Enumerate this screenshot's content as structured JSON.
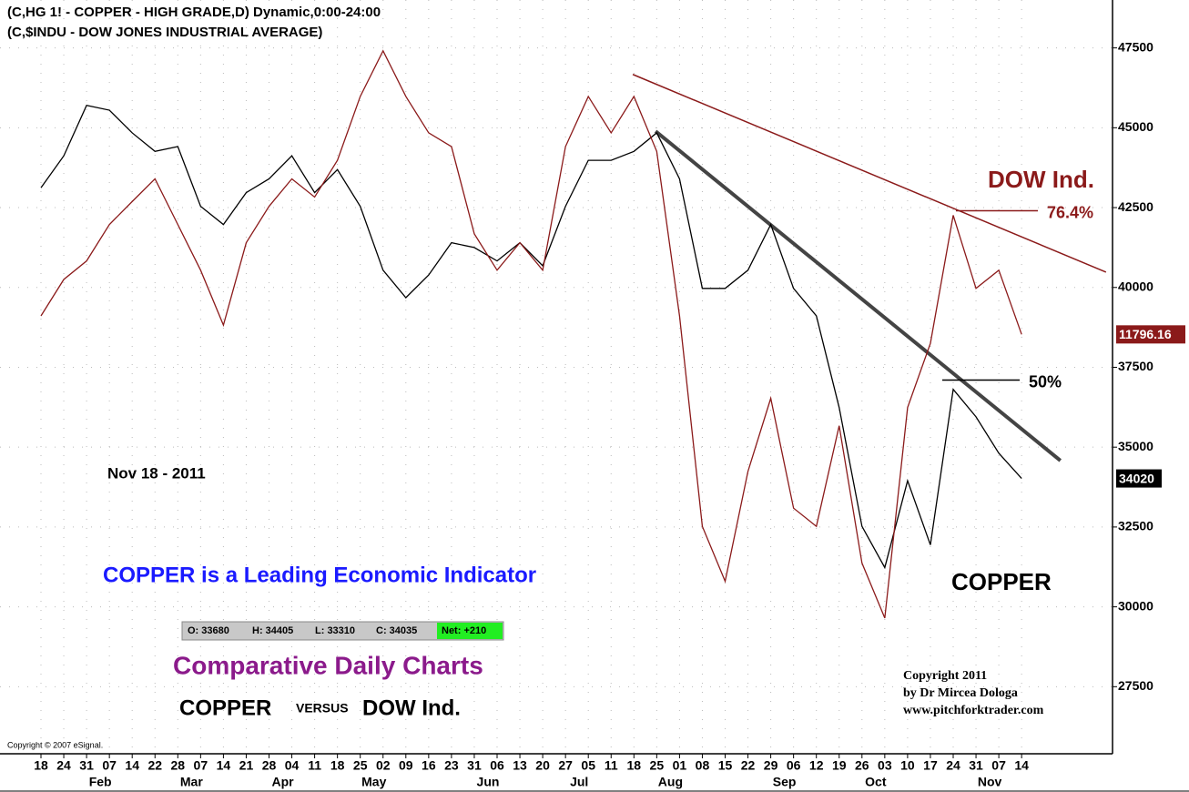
{
  "chart_data": {
    "type": "line",
    "header": [
      "(C,HG 1! - COPPER - HIGH GRADE,D) Dynamic,0:00-24:00",
      "(C,$INDU - DOW JONES INDUSTRIAL AVERAGE)"
    ],
    "categories": [
      "18",
      "24",
      "31",
      "07",
      "14",
      "22",
      "28",
      "07",
      "14",
      "21",
      "28",
      "04",
      "11",
      "18",
      "25",
      "02",
      "09",
      "16",
      "23",
      "31",
      "06",
      "13",
      "20",
      "27",
      "05",
      "11",
      "18",
      "25",
      "01",
      "08",
      "15",
      "22",
      "29",
      "06",
      "12",
      "19",
      "26",
      "03",
      "10",
      "17",
      "24",
      "31",
      "07",
      "14"
    ],
    "months": [
      null,
      null,
      null,
      "Feb",
      null,
      null,
      null,
      "Mar",
      null,
      null,
      null,
      "Apr",
      null,
      null,
      null,
      "May",
      null,
      null,
      null,
      null,
      "Jun",
      null,
      null,
      null,
      "Jul",
      null,
      null,
      null,
      "Aug",
      null,
      null,
      null,
      null,
      "Sep",
      null,
      null,
      null,
      "Oct",
      null,
      null,
      null,
      null,
      "Nov",
      null
    ],
    "series": [
      {
        "name": "COPPER",
        "color": "#000000",
        "values": [
          43120,
          44120,
          45700,
          45550,
          44840,
          44260,
          44410,
          42540,
          41970,
          42970,
          43400,
          44120,
          42970,
          43690,
          42540,
          40540,
          39680,
          40390,
          41400,
          41250,
          40830,
          41400,
          40680,
          42540,
          43980,
          43980,
          44260,
          44840,
          43400,
          39970,
          39970,
          40540,
          41970,
          39970,
          39110,
          36240,
          32520,
          31230,
          33950,
          31940,
          36810,
          35950,
          34810,
          34020
        ]
      },
      {
        "name": "DOW Ind.",
        "color": "#8b1a1a",
        "last_label": "11796.16",
        "values": [
          39110,
          40250,
          40830,
          41970,
          42690,
          43400,
          41970,
          40540,
          38820,
          41400,
          42540,
          43400,
          42830,
          43980,
          45980,
          47410,
          45980,
          44840,
          44410,
          41680,
          40540,
          41400,
          40540,
          44410,
          45980,
          44840,
          45980,
          44260,
          39110,
          32520,
          30800,
          34240,
          36530,
          33090,
          32520,
          35670,
          31370,
          29650,
          36240,
          38250,
          42260,
          39970,
          40540,
          38530
        ]
      }
    ],
    "ylim": [
      25400,
      49000
    ],
    "yticks": [
      27500,
      30000,
      32500,
      35000,
      37500,
      40000,
      42500,
      45000,
      47500
    ],
    "grid": true,
    "trendlines": [
      {
        "color": "#8b1a1a",
        "start": [
          25.95,
          46670
        ],
        "end": [
          46.7,
          40480
        ]
      },
      {
        "color": "#444444",
        "start": [
          26.95,
          44890
        ],
        "end": [
          44.7,
          34580
        ]
      }
    ],
    "levels": [
      {
        "label": "76.4%",
        "value": 42400,
        "color": "#8b1a1a"
      },
      {
        "label": "50%",
        "value": 37100,
        "color": "#000000"
      }
    ],
    "annotations": {
      "date": "Nov 18 - 2011",
      "headline": "COPPER is a Leading Economic Indicator",
      "ohlc": [
        "O: 33680",
        "H: 34405",
        "L: 33310",
        "C: 34035"
      ],
      "net": "Net: +210",
      "subtitle": "Comparative Daily Charts",
      "versus": [
        "COPPER",
        "VERSUS",
        "DOW Ind."
      ],
      "copyright": [
        "Copyright 2011",
        "by Dr Mircea Dologa",
        "www.pitchforktrader.com"
      ],
      "esignal": "Copyright © 2007 eSignal."
    }
  }
}
